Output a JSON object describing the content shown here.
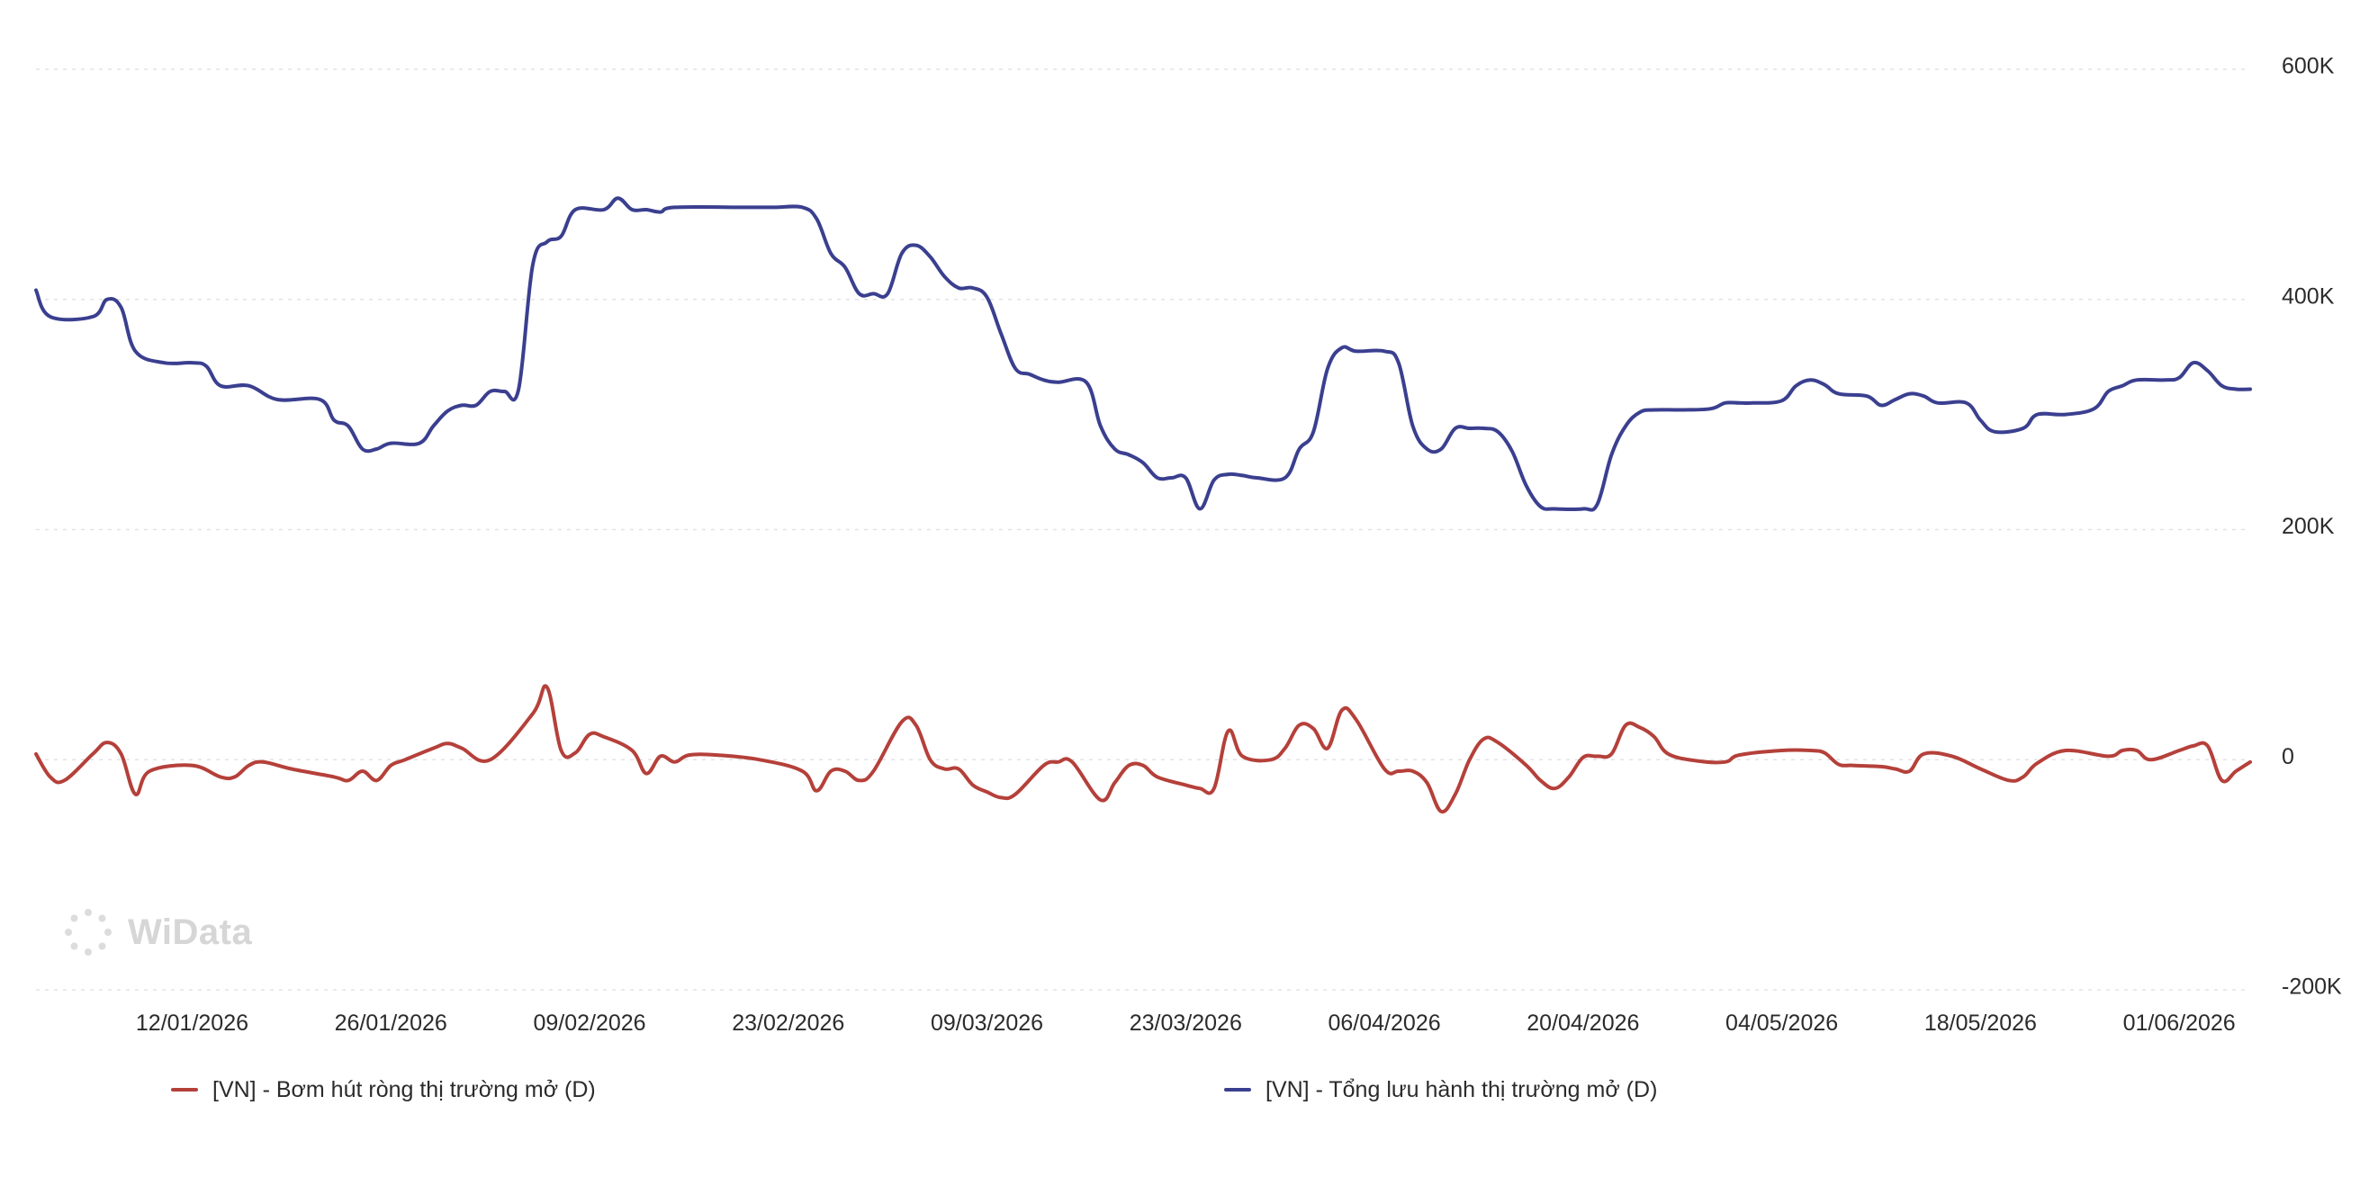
{
  "watermark": {
    "text": "WiData"
  },
  "chart_data": {
    "type": "line",
    "x_tick_labels": [
      "12/01/2026",
      "26/01/2026",
      "09/02/2026",
      "23/02/2026",
      "09/03/2026",
      "23/03/2026",
      "06/04/2026",
      "20/04/2026",
      "04/05/2026",
      "18/05/2026",
      "01/06/2026"
    ],
    "y_tick_labels": [
      "600K",
      "400K",
      "200K",
      "0",
      "-200K"
    ],
    "y_ticks": [
      600000,
      400000,
      200000,
      0,
      -200000
    ],
    "ylim": [
      -200000,
      600000
    ],
    "grid": true,
    "y_axis_side": "right",
    "legend_position": "bottom",
    "series": [
      {
        "name": "[VN] - Bơm hút ròng thị trường mở (D)",
        "color": "#b5403a",
        "points": [
          [
            "2026-01-01",
            5000
          ],
          [
            "2026-01-02",
            -15000
          ],
          [
            "2026-01-03",
            -18000
          ],
          [
            "2026-01-05",
            5000
          ],
          [
            "2026-01-06",
            15000
          ],
          [
            "2026-01-07",
            5000
          ],
          [
            "2026-01-08",
            -30000
          ],
          [
            "2026-01-09",
            -10000
          ],
          [
            "2026-01-12",
            -5000
          ],
          [
            "2026-01-14",
            -15000
          ],
          [
            "2026-01-15",
            -15000
          ],
          [
            "2026-01-16",
            -5000
          ],
          [
            "2026-01-17",
            -2000
          ],
          [
            "2026-01-19",
            -8000
          ],
          [
            "2026-01-22",
            -15000
          ],
          [
            "2026-01-23",
            -18000
          ],
          [
            "2026-01-24",
            -10000
          ],
          [
            "2026-01-25",
            -18000
          ],
          [
            "2026-01-26",
            -5000
          ],
          [
            "2026-01-27",
            0
          ],
          [
            "2026-01-29",
            10000
          ],
          [
            "2026-01-30",
            14000
          ],
          [
            "2026-01-31",
            10000
          ],
          [
            "2026-02-02",
            0
          ],
          [
            "2026-02-05",
            40000
          ],
          [
            "2026-02-06",
            63000
          ],
          [
            "2026-02-07",
            8000
          ],
          [
            "2026-02-08",
            6000
          ],
          [
            "2026-02-09",
            22000
          ],
          [
            "2026-02-10",
            20000
          ],
          [
            "2026-02-12",
            8000
          ],
          [
            "2026-02-13",
            -12000
          ],
          [
            "2026-02-14",
            3000
          ],
          [
            "2026-02-15",
            -2000
          ],
          [
            "2026-02-16",
            4000
          ],
          [
            "2026-02-18",
            4000
          ],
          [
            "2026-02-21",
            0
          ],
          [
            "2026-02-24",
            -10000
          ],
          [
            "2026-02-25",
            -27000
          ],
          [
            "2026-02-26",
            -10000
          ],
          [
            "2026-02-27",
            -10000
          ],
          [
            "2026-02-28",
            -18000
          ],
          [
            "2026-03-01",
            -10000
          ],
          [
            "2026-03-03",
            33000
          ],
          [
            "2026-03-04",
            30000
          ],
          [
            "2026-03-05",
            0
          ],
          [
            "2026-03-06",
            -8000
          ],
          [
            "2026-03-07",
            -8000
          ],
          [
            "2026-03-08",
            -22000
          ],
          [
            "2026-03-09",
            -28000
          ],
          [
            "2026-03-10",
            -33000
          ],
          [
            "2026-03-11",
            -30000
          ],
          [
            "2026-03-13",
            -5000
          ],
          [
            "2026-03-14",
            -2000
          ],
          [
            "2026-03-15",
            -2000
          ],
          [
            "2026-03-17",
            -35000
          ],
          [
            "2026-03-18",
            -20000
          ],
          [
            "2026-03-19",
            -5000
          ],
          [
            "2026-03-20",
            -5000
          ],
          [
            "2026-03-21",
            -15000
          ],
          [
            "2026-03-23",
            -22000
          ],
          [
            "2026-03-24",
            -25000
          ],
          [
            "2026-03-25",
            -25000
          ],
          [
            "2026-03-26",
            25000
          ],
          [
            "2026-03-27",
            3000
          ],
          [
            "2026-03-29",
            0
          ],
          [
            "2026-03-30",
            10000
          ],
          [
            "2026-03-31",
            30000
          ],
          [
            "2026-04-01",
            27000
          ],
          [
            "2026-04-02",
            10000
          ],
          [
            "2026-04-03",
            43000
          ],
          [
            "2026-04-04",
            35000
          ],
          [
            "2026-04-06",
            -8000
          ],
          [
            "2026-04-07",
            -10000
          ],
          [
            "2026-04-08",
            -10000
          ],
          [
            "2026-04-09",
            -20000
          ],
          [
            "2026-04-10",
            -45000
          ],
          [
            "2026-04-11",
            -30000
          ],
          [
            "2026-04-12",
            0
          ],
          [
            "2026-04-13",
            18000
          ],
          [
            "2026-04-14",
            15000
          ],
          [
            "2026-04-16",
            -5000
          ],
          [
            "2026-04-17",
            -18000
          ],
          [
            "2026-04-18",
            -25000
          ],
          [
            "2026-04-19",
            -15000
          ],
          [
            "2026-04-20",
            2000
          ],
          [
            "2026-04-21",
            3000
          ],
          [
            "2026-04-22",
            5000
          ],
          [
            "2026-04-23",
            30000
          ],
          [
            "2026-04-24",
            28000
          ],
          [
            "2026-04-25",
            20000
          ],
          [
            "2026-04-26",
            5000
          ],
          [
            "2026-04-28",
            -1000
          ],
          [
            "2026-04-30",
            -2000
          ],
          [
            "2026-05-01",
            4000
          ],
          [
            "2026-05-04",
            8000
          ],
          [
            "2026-05-06",
            8000
          ],
          [
            "2026-05-07",
            6000
          ],
          [
            "2026-05-08",
            -4000
          ],
          [
            "2026-05-09",
            -5000
          ],
          [
            "2026-05-11",
            -6000
          ],
          [
            "2026-05-12",
            -8000
          ],
          [
            "2026-05-13",
            -10000
          ],
          [
            "2026-05-14",
            5000
          ],
          [
            "2026-05-16",
            3000
          ],
          [
            "2026-05-18",
            -8000
          ],
          [
            "2026-05-20",
            -18000
          ],
          [
            "2026-05-21",
            -15000
          ],
          [
            "2026-05-22",
            -3000
          ],
          [
            "2026-05-24",
            8000
          ],
          [
            "2026-05-27",
            3000
          ],
          [
            "2026-05-28",
            8000
          ],
          [
            "2026-05-29",
            8000
          ],
          [
            "2026-05-30",
            0
          ],
          [
            "2026-06-01",
            8000
          ],
          [
            "2026-06-02",
            12000
          ],
          [
            "2026-06-03",
            12000
          ],
          [
            "2026-06-04",
            -18000
          ],
          [
            "2026-06-05",
            -10000
          ],
          [
            "2026-06-06",
            -2000
          ]
        ]
      },
      {
        "name": "[VN] - Tổng lưu hành thị trường mở (D)",
        "color": "#3a3f8f",
        "points": [
          [
            "2026-01-01",
            408000
          ],
          [
            "2026-01-02",
            385000
          ],
          [
            "2026-01-05",
            385000
          ],
          [
            "2026-01-06",
            400000
          ],
          [
            "2026-01-07",
            393000
          ],
          [
            "2026-01-08",
            355000
          ],
          [
            "2026-01-10",
            345000
          ],
          [
            "2026-01-12",
            345000
          ],
          [
            "2026-01-13",
            342000
          ],
          [
            "2026-01-14",
            325000
          ],
          [
            "2026-01-16",
            325000
          ],
          [
            "2026-01-18",
            313000
          ],
          [
            "2026-01-21",
            313000
          ],
          [
            "2026-01-22",
            295000
          ],
          [
            "2026-01-23",
            290000
          ],
          [
            "2026-01-24",
            270000
          ],
          [
            "2026-01-25",
            270000
          ],
          [
            "2026-01-26",
            275000
          ],
          [
            "2026-01-28",
            275000
          ],
          [
            "2026-01-29",
            290000
          ],
          [
            "2026-01-30",
            303000
          ],
          [
            "2026-01-31",
            308000
          ],
          [
            "2026-02-01",
            308000
          ],
          [
            "2026-02-02",
            320000
          ],
          [
            "2026-02-03",
            320000
          ],
          [
            "2026-02-04",
            322000
          ],
          [
            "2026-02-05",
            430000
          ],
          [
            "2026-02-06",
            450000
          ],
          [
            "2026-02-07",
            455000
          ],
          [
            "2026-02-08",
            478000
          ],
          [
            "2026-02-10",
            478000
          ],
          [
            "2026-02-11",
            488000
          ],
          [
            "2026-02-12",
            478000
          ],
          [
            "2026-02-13",
            478000
          ],
          [
            "2026-02-14",
            476000
          ],
          [
            "2026-02-15",
            480000
          ],
          [
            "2026-02-20",
            480000
          ],
          [
            "2026-02-22",
            480000
          ],
          [
            "2026-02-24",
            480000
          ],
          [
            "2026-02-25",
            470000
          ],
          [
            "2026-02-26",
            440000
          ],
          [
            "2026-02-27",
            428000
          ],
          [
            "2026-02-28",
            405000
          ],
          [
            "2026-03-01",
            405000
          ],
          [
            "2026-03-02",
            405000
          ],
          [
            "2026-03-03",
            440000
          ],
          [
            "2026-03-04",
            447000
          ],
          [
            "2026-03-05",
            437000
          ],
          [
            "2026-03-06",
            420000
          ],
          [
            "2026-03-07",
            410000
          ],
          [
            "2026-03-08",
            410000
          ],
          [
            "2026-03-09",
            402000
          ],
          [
            "2026-03-10",
            370000
          ],
          [
            "2026-03-11",
            340000
          ],
          [
            "2026-03-12",
            335000
          ],
          [
            "2026-03-13",
            330000
          ],
          [
            "2026-03-14",
            328000
          ],
          [
            "2026-03-16",
            328000
          ],
          [
            "2026-03-17",
            290000
          ],
          [
            "2026-03-18",
            270000
          ],
          [
            "2026-03-19",
            265000
          ],
          [
            "2026-03-20",
            258000
          ],
          [
            "2026-03-21",
            245000
          ],
          [
            "2026-03-22",
            245000
          ],
          [
            "2026-03-23",
            245000
          ],
          [
            "2026-03-24",
            218000
          ],
          [
            "2026-03-25",
            243000
          ],
          [
            "2026-03-26",
            248000
          ],
          [
            "2026-03-27",
            247000
          ],
          [
            "2026-03-28",
            245000
          ],
          [
            "2026-03-30",
            245000
          ],
          [
            "2026-03-31",
            270000
          ],
          [
            "2026-04-01",
            285000
          ],
          [
            "2026-04-02",
            340000
          ],
          [
            "2026-04-03",
            358000
          ],
          [
            "2026-04-04",
            355000
          ],
          [
            "2026-04-06",
            355000
          ],
          [
            "2026-04-07",
            345000
          ],
          [
            "2026-04-08",
            290000
          ],
          [
            "2026-04-09",
            270000
          ],
          [
            "2026-04-10",
            270000
          ],
          [
            "2026-04-11",
            288000
          ],
          [
            "2026-04-12",
            288000
          ],
          [
            "2026-04-13",
            288000
          ],
          [
            "2026-04-14",
            285000
          ],
          [
            "2026-04-15",
            268000
          ],
          [
            "2026-04-16",
            238000
          ],
          [
            "2026-04-17",
            220000
          ],
          [
            "2026-04-18",
            218000
          ],
          [
            "2026-04-20",
            218000
          ],
          [
            "2026-04-21",
            222000
          ],
          [
            "2026-04-22",
            265000
          ],
          [
            "2026-04-23",
            290000
          ],
          [
            "2026-04-24",
            302000
          ],
          [
            "2026-04-25",
            304000
          ],
          [
            "2026-04-27",
            304000
          ],
          [
            "2026-04-29",
            305000
          ],
          [
            "2026-04-30",
            310000
          ],
          [
            "2026-05-01",
            310000
          ],
          [
            "2026-05-02",
            310000
          ],
          [
            "2026-05-04",
            312000
          ],
          [
            "2026-05-05",
            325000
          ],
          [
            "2026-05-06",
            330000
          ],
          [
            "2026-05-07",
            326000
          ],
          [
            "2026-05-08",
            318000
          ],
          [
            "2026-05-10",
            316000
          ],
          [
            "2026-05-11",
            308000
          ],
          [
            "2026-05-12",
            313000
          ],
          [
            "2026-05-13",
            318000
          ],
          [
            "2026-05-14",
            316000
          ],
          [
            "2026-05-15",
            310000
          ],
          [
            "2026-05-17",
            310000
          ],
          [
            "2026-05-18",
            295000
          ],
          [
            "2026-05-19",
            285000
          ],
          [
            "2026-05-21",
            288000
          ],
          [
            "2026-05-22",
            300000
          ],
          [
            "2026-05-24",
            300000
          ],
          [
            "2026-05-26",
            305000
          ],
          [
            "2026-05-27",
            320000
          ],
          [
            "2026-05-28",
            325000
          ],
          [
            "2026-05-29",
            330000
          ],
          [
            "2026-05-31",
            330000
          ],
          [
            "2026-06-01",
            332000
          ],
          [
            "2026-06-02",
            345000
          ],
          [
            "2026-06-03",
            338000
          ],
          [
            "2026-06-04",
            325000
          ],
          [
            "2026-06-05",
            322000
          ],
          [
            "2026-06-06",
            322000
          ]
        ]
      }
    ]
  }
}
